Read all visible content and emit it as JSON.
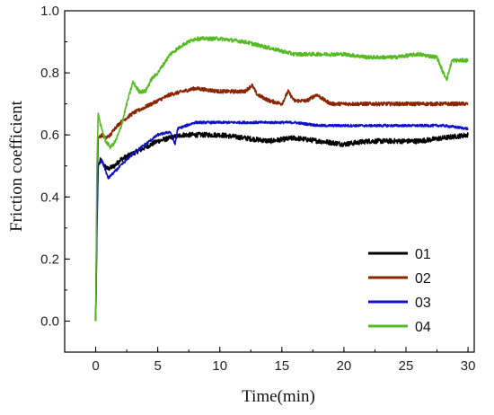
{
  "chart_data": {
    "type": "line",
    "title": "",
    "xlabel": "Time(min)",
    "ylabel": "Friction coefficient",
    "xlim": [
      -2.5,
      30.5
    ],
    "ylim": [
      -0.1,
      1.0
    ],
    "x_ticks": [
      0,
      5,
      10,
      15,
      20,
      25,
      30
    ],
    "y_ticks": [
      0.0,
      0.2,
      0.4,
      0.6,
      0.8,
      1.0
    ],
    "y_tick_labels": [
      "0.0",
      "0.2",
      "0.4",
      "0.6",
      "0.8",
      "1.0"
    ],
    "grid": false,
    "legend_position": "bottom-right",
    "series": [
      {
        "name": "01",
        "color": "#000000",
        "points": [
          [
            0,
            0.0
          ],
          [
            0.1,
            0.3
          ],
          [
            0.2,
            0.5
          ],
          [
            0.4,
            0.52
          ],
          [
            0.7,
            0.5
          ],
          [
            1.0,
            0.49
          ],
          [
            1.5,
            0.5
          ],
          [
            2,
            0.52
          ],
          [
            3,
            0.54
          ],
          [
            4,
            0.56
          ],
          [
            5,
            0.58
          ],
          [
            6,
            0.59
          ],
          [
            7,
            0.6
          ],
          [
            8,
            0.6
          ],
          [
            10,
            0.6
          ],
          [
            12,
            0.59
          ],
          [
            14,
            0.58
          ],
          [
            16,
            0.59
          ],
          [
            18,
            0.58
          ],
          [
            20,
            0.57
          ],
          [
            22,
            0.58
          ],
          [
            24,
            0.58
          ],
          [
            26,
            0.58
          ],
          [
            28,
            0.59
          ],
          [
            30,
            0.6
          ]
        ],
        "noise": 0.008
      },
      {
        "name": "02",
        "color": "#8B2500",
        "points": [
          [
            0,
            0.0
          ],
          [
            0.1,
            0.4
          ],
          [
            0.2,
            0.59
          ],
          [
            0.5,
            0.6
          ],
          [
            0.8,
            0.59
          ],
          [
            1.2,
            0.6
          ],
          [
            1.5,
            0.62
          ],
          [
            2,
            0.64
          ],
          [
            3,
            0.67
          ],
          [
            4,
            0.69
          ],
          [
            5,
            0.71
          ],
          [
            6,
            0.73
          ],
          [
            7,
            0.74
          ],
          [
            8,
            0.75
          ],
          [
            10,
            0.74
          ],
          [
            12,
            0.74
          ],
          [
            12.6,
            0.76
          ],
          [
            13,
            0.73
          ],
          [
            14,
            0.71
          ],
          [
            15,
            0.7
          ],
          [
            15.5,
            0.74
          ],
          [
            16,
            0.71
          ],
          [
            17,
            0.71
          ],
          [
            17.8,
            0.73
          ],
          [
            18.5,
            0.71
          ],
          [
            19,
            0.7
          ],
          [
            20,
            0.7
          ],
          [
            22,
            0.7
          ],
          [
            25,
            0.7
          ],
          [
            28,
            0.7
          ],
          [
            30,
            0.7
          ]
        ],
        "noise": 0.006
      },
      {
        "name": "03",
        "color": "#1010CC",
        "points": [
          [
            0,
            0.0
          ],
          [
            0.1,
            0.35
          ],
          [
            0.2,
            0.5
          ],
          [
            0.5,
            0.52
          ],
          [
            1.0,
            0.46
          ],
          [
            1.5,
            0.48
          ],
          [
            2,
            0.5
          ],
          [
            3,
            0.54
          ],
          [
            4,
            0.57
          ],
          [
            5,
            0.6
          ],
          [
            6,
            0.61
          ],
          [
            6.4,
            0.57
          ],
          [
            6.6,
            0.62
          ],
          [
            8,
            0.64
          ],
          [
            10,
            0.64
          ],
          [
            12,
            0.64
          ],
          [
            14,
            0.64
          ],
          [
            16,
            0.64
          ],
          [
            18,
            0.63
          ],
          [
            20,
            0.63
          ],
          [
            22,
            0.63
          ],
          [
            24,
            0.63
          ],
          [
            26,
            0.63
          ],
          [
            28,
            0.63
          ],
          [
            30,
            0.62
          ]
        ],
        "noise": 0.004
      },
      {
        "name": "04",
        "color": "#55BB22",
        "points": [
          [
            0,
            0.0
          ],
          [
            0.1,
            0.5
          ],
          [
            0.2,
            0.67
          ],
          [
            0.4,
            0.63
          ],
          [
            0.8,
            0.58
          ],
          [
            1.2,
            0.56
          ],
          [
            1.6,
            0.58
          ],
          [
            2,
            0.62
          ],
          [
            2.5,
            0.7
          ],
          [
            3,
            0.77
          ],
          [
            3.5,
            0.74
          ],
          [
            4,
            0.74
          ],
          [
            4.5,
            0.78
          ],
          [
            5,
            0.8
          ],
          [
            6,
            0.86
          ],
          [
            7,
            0.89
          ],
          [
            8,
            0.91
          ],
          [
            10,
            0.91
          ],
          [
            12,
            0.9
          ],
          [
            14,
            0.88
          ],
          [
            16,
            0.86
          ],
          [
            18,
            0.86
          ],
          [
            20,
            0.86
          ],
          [
            22,
            0.85
          ],
          [
            24,
            0.85
          ],
          [
            26,
            0.86
          ],
          [
            27.5,
            0.85
          ],
          [
            28,
            0.8
          ],
          [
            28.3,
            0.78
          ],
          [
            28.7,
            0.84
          ],
          [
            30,
            0.84
          ]
        ],
        "noise": 0.006
      }
    ]
  }
}
